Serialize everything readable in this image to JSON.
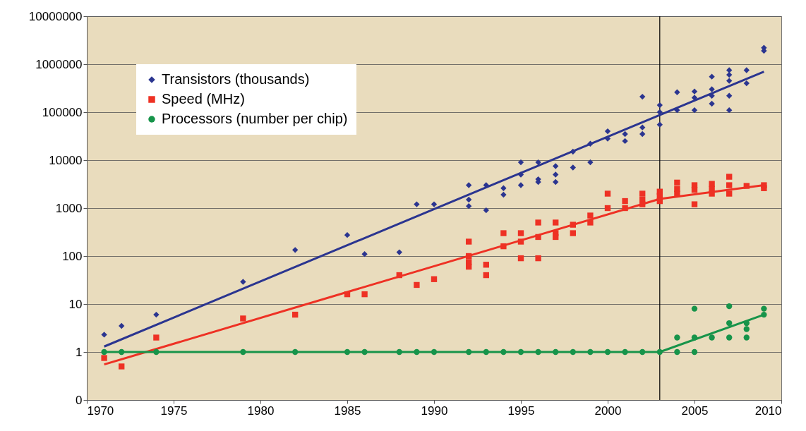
{
  "chart_data": {
    "type": "scatter",
    "xlim": [
      1970,
      2010
    ],
    "xticks": [
      1970,
      1975,
      1980,
      1985,
      1990,
      1995,
      2000,
      2005,
      2010
    ],
    "ylim": [
      0.1,
      10000000
    ],
    "yticks": [
      {
        "value": 0.1,
        "label": "0"
      },
      1,
      10,
      100,
      1000,
      10000,
      100000,
      1000000,
      10000000
    ],
    "log": true,
    "grid": "y",
    "legend": "top left",
    "ref_lines": [
      {
        "axis": "x",
        "value": 2003,
        "color": "#000000"
      }
    ],
    "series": [
      {
        "name": "Transistors (thousands)",
        "type": "scatter",
        "marker": "diamond",
        "color": "#2b3590",
        "x": [
          1971,
          1972,
          1974,
          1979,
          1982,
          1985,
          1986,
          1988,
          1989,
          1990,
          1992,
          1992,
          1992,
          1993,
          1993,
          1994,
          1994,
          1995,
          1995,
          1995,
          1996,
          1996,
          1996,
          1997,
          1997,
          1997,
          1998,
          1998,
          1999,
          1999,
          2000,
          2000,
          2001,
          2001,
          2002,
          2002,
          2002,
          2003,
          2003,
          2003,
          2004,
          2004,
          2005,
          2005,
          2005,
          2006,
          2006,
          2006,
          2006,
          2007,
          2007,
          2007,
          2007,
          2007,
          2008,
          2008,
          2009,
          2009
        ],
        "values": [
          2.3,
          3.5,
          6,
          29,
          134,
          275,
          110,
          120,
          1200,
          1200,
          3000,
          1500,
          1100,
          3000,
          900,
          2600,
          1900,
          9000,
          5000,
          3000,
          9000,
          4000,
          3500,
          7500,
          5000,
          3500,
          15000,
          7000,
          22000,
          9000,
          40000,
          28000,
          35000,
          25000,
          210000,
          48000,
          35000,
          140000,
          100000,
          55000,
          260000,
          110000,
          270000,
          200000,
          110000,
          550000,
          300000,
          220000,
          150000,
          750000,
          600000,
          450000,
          220000,
          110000,
          750000,
          400000,
          2200000,
          1900000
        ]
      },
      {
        "name": "Speed (MHz)",
        "type": "scatter",
        "marker": "square",
        "color": "#ee3124",
        "x": [
          1971,
          1972,
          1974,
          1979,
          1982,
          1985,
          1986,
          1988,
          1989,
          1990,
          1992,
          1992,
          1992,
          1992,
          1993,
          1993,
          1994,
          1994,
          1995,
          1995,
          1995,
          1996,
          1996,
          1996,
          1997,
          1997,
          1997,
          1998,
          1998,
          1999,
          1999,
          2000,
          2000,
          2001,
          2001,
          2002,
          2002,
          2002,
          2003,
          2003,
          2003,
          2004,
          2004,
          2004,
          2005,
          2005,
          2005,
          2006,
          2006,
          2006,
          2007,
          2007,
          2007,
          2008,
          2009,
          2009
        ],
        "values": [
          0.75,
          0.5,
          2,
          5,
          6,
          16,
          16,
          40,
          25,
          33,
          200,
          100,
          75,
          60,
          66,
          40,
          300,
          160,
          300,
          200,
          90,
          500,
          250,
          90,
          500,
          300,
          250,
          450,
          300,
          700,
          500,
          2000,
          1000,
          1400,
          1000,
          2000,
          1500,
          1200,
          2200,
          1800,
          1400,
          3400,
          2500,
          2000,
          3000,
          2400,
          1200,
          3200,
          2500,
          2000,
          4500,
          3000,
          2000,
          2900,
          3000,
          2600
        ]
      },
      {
        "name": "Processors (number per chip)",
        "type": "scatter",
        "marker": "circle",
        "color": "#17944a",
        "x": [
          1971,
          1972,
          1974,
          1979,
          1982,
          1985,
          1986,
          1988,
          1989,
          1990,
          1992,
          1993,
          1994,
          1995,
          1996,
          1997,
          1998,
          1999,
          2000,
          2001,
          2002,
          2003,
          2004,
          2004,
          2005,
          2005,
          2005,
          2006,
          2007,
          2007,
          2007,
          2008,
          2008,
          2008,
          2009,
          2009
        ],
        "values": [
          1,
          1,
          1,
          1,
          1,
          1,
          1,
          1,
          1,
          1,
          1,
          1,
          1,
          1,
          1,
          1,
          1,
          1,
          1,
          1,
          1,
          1,
          2,
          1,
          8,
          2,
          1,
          2,
          9,
          4,
          2,
          4,
          3,
          2,
          8,
          6
        ]
      },
      {
        "type": "line",
        "color": "#2b3590",
        "x": [
          1971,
          2009
        ],
        "values": [
          1.3,
          700000
        ]
      },
      {
        "type": "line",
        "color": "#ee3124",
        "x": [
          1971,
          2003,
          2009
        ],
        "values": [
          0.55,
          1550,
          3000
        ]
      },
      {
        "type": "line",
        "color": "#17944a",
        "x": [
          1971,
          2003,
          2009
        ],
        "values": [
          1,
          1,
          6
        ]
      }
    ]
  }
}
